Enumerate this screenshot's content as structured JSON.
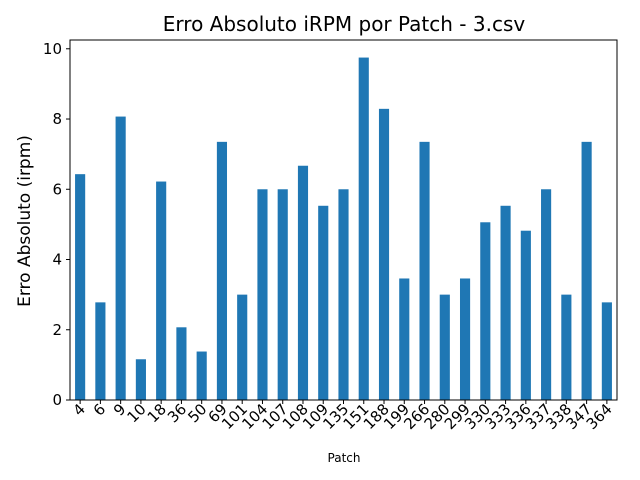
{
  "chart_data": {
    "type": "bar",
    "title": "Erro Absoluto iRPM por Patch - 3.csv",
    "xlabel": "Patch",
    "ylabel": "Erro Absoluto (irpm)",
    "ylim": [
      0,
      10.25
    ],
    "yticks": [
      0,
      2,
      4,
      6,
      8,
      10
    ],
    "categories": [
      "4",
      "6",
      "9",
      "10",
      "18",
      "36",
      "50",
      "69",
      "101",
      "104",
      "107",
      "108",
      "109",
      "135",
      "151",
      "188",
      "199",
      "266",
      "280",
      "299",
      "330",
      "333",
      "336",
      "337",
      "338",
      "347",
      "364"
    ],
    "values": [
      6.43,
      2.78,
      8.07,
      1.16,
      6.22,
      2.07,
      1.38,
      7.35,
      3.0,
      6.0,
      6.0,
      6.67,
      5.53,
      6.0,
      9.75,
      8.29,
      3.46,
      7.35,
      3.0,
      3.46,
      5.06,
      5.53,
      4.82,
      6.0,
      3.0,
      7.35,
      2.78
    ],
    "bar_color": "#1f77b4",
    "grid": false,
    "legend": false
  }
}
